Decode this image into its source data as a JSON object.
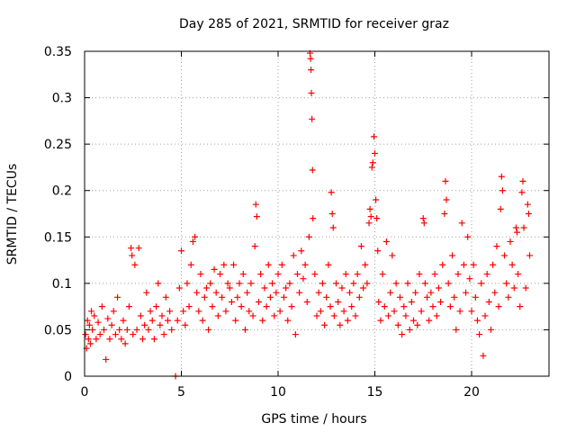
{
  "chart_data": {
    "type": "scatter",
    "title": "Day 285 of 2021, SRMTID for receiver graz",
    "xlabel": "GPS time / hours",
    "ylabel": "SRMTID / TECUs",
    "xlim": [
      0,
      24
    ],
    "ylim": [
      0,
      0.35
    ],
    "xticks": [
      0,
      5,
      10,
      15,
      20
    ],
    "xtick_labels": [
      "0",
      "5",
      "10",
      "15",
      "20"
    ],
    "yticks": [
      0,
      0.05,
      0.1,
      0.15,
      0.2,
      0.25,
      0.3,
      0.35
    ],
    "ytick_labels": [
      "0",
      "0.05",
      "0.1",
      "0.15",
      "0.2",
      "0.25",
      "0.3",
      "0.35"
    ],
    "grid": true,
    "marker": "plus",
    "color": "#ff0000",
    "series": [
      {
        "name": "SRMTID",
        "points": [
          [
            0.05,
            0.045
          ],
          [
            0.1,
            0.03
          ],
          [
            0.15,
            0.06
          ],
          [
            0.2,
            0.04
          ],
          [
            0.25,
            0.055
          ],
          [
            0.3,
            0.035
          ],
          [
            0.35,
            0.07
          ],
          [
            0.4,
            0.05
          ],
          [
            0.5,
            0.065
          ],
          [
            0.6,
            0.04
          ],
          [
            0.7,
            0.058
          ],
          [
            0.8,
            0.045
          ],
          [
            0.9,
            0.075
          ],
          [
            1.0,
            0.05
          ],
          [
            1.1,
            0.018
          ],
          [
            1.2,
            0.062
          ],
          [
            1.3,
            0.04
          ],
          [
            1.4,
            0.055
          ],
          [
            1.5,
            0.07
          ],
          [
            1.6,
            0.045
          ],
          [
            1.7,
            0.085
          ],
          [
            1.8,
            0.05
          ],
          [
            1.9,
            0.04
          ],
          [
            2.0,
            0.06
          ],
          [
            2.1,
            0.035
          ],
          [
            2.2,
            0.05
          ],
          [
            2.3,
            0.075
          ],
          [
            2.4,
            0.138
          ],
          [
            2.45,
            0.13
          ],
          [
            2.5,
            0.045
          ],
          [
            2.6,
            0.12
          ],
          [
            2.7,
            0.05
          ],
          [
            2.8,
            0.138
          ],
          [
            2.9,
            0.065
          ],
          [
            3.0,
            0.04
          ],
          [
            3.1,
            0.055
          ],
          [
            3.2,
            0.09
          ],
          [
            3.3,
            0.05
          ],
          [
            3.4,
            0.07
          ],
          [
            3.5,
            0.06
          ],
          [
            3.6,
            0.04
          ],
          [
            3.7,
            0.075
          ],
          [
            3.8,
            0.1
          ],
          [
            3.9,
            0.055
          ],
          [
            4.0,
            0.065
          ],
          [
            4.1,
            0.045
          ],
          [
            4.2,
            0.085
          ],
          [
            4.3,
            0.06
          ],
          [
            4.4,
            0.07
          ],
          [
            4.5,
            0.05
          ],
          [
            4.7,
            0.0
          ],
          [
            4.8,
            0.06
          ],
          [
            4.9,
            0.095
          ],
          [
            5.0,
            0.135
          ],
          [
            5.1,
            0.07
          ],
          [
            5.2,
            0.055
          ],
          [
            5.3,
            0.1
          ],
          [
            5.4,
            0.075
          ],
          [
            5.5,
            0.12
          ],
          [
            5.6,
            0.145
          ],
          [
            5.7,
            0.15
          ],
          [
            5.8,
            0.09
          ],
          [
            5.9,
            0.07
          ],
          [
            6.0,
            0.11
          ],
          [
            6.1,
            0.06
          ],
          [
            6.2,
            0.085
          ],
          [
            6.3,
            0.095
          ],
          [
            6.4,
            0.05
          ],
          [
            6.5,
            0.1
          ],
          [
            6.6,
            0.075
          ],
          [
            6.7,
            0.115
          ],
          [
            6.8,
            0.09
          ],
          [
            6.9,
            0.065
          ],
          [
            7.0,
            0.11
          ],
          [
            7.1,
            0.085
          ],
          [
            7.2,
            0.12
          ],
          [
            7.3,
            0.07
          ],
          [
            7.4,
            0.1
          ],
          [
            7.5,
            0.095
          ],
          [
            7.6,
            0.08
          ],
          [
            7.7,
            0.12
          ],
          [
            7.8,
            0.06
          ],
          [
            7.9,
            0.085
          ],
          [
            8.0,
            0.1
          ],
          [
            8.1,
            0.075
          ],
          [
            8.2,
            0.11
          ],
          [
            8.3,
            0.05
          ],
          [
            8.4,
            0.09
          ],
          [
            8.5,
            0.07
          ],
          [
            8.6,
            0.1
          ],
          [
            8.7,
            0.065
          ],
          [
            8.8,
            0.14
          ],
          [
            8.85,
            0.185
          ],
          [
            8.9,
            0.172
          ],
          [
            9.0,
            0.08
          ],
          [
            9.1,
            0.11
          ],
          [
            9.2,
            0.06
          ],
          [
            9.3,
            0.095
          ],
          [
            9.4,
            0.075
          ],
          [
            9.5,
            0.12
          ],
          [
            9.6,
            0.085
          ],
          [
            9.7,
            0.1
          ],
          [
            9.8,
            0.065
          ],
          [
            9.9,
            0.09
          ],
          [
            10.0,
            0.11
          ],
          [
            10.1,
            0.07
          ],
          [
            10.2,
            0.12
          ],
          [
            10.3,
            0.085
          ],
          [
            10.4,
            0.095
          ],
          [
            10.5,
            0.06
          ],
          [
            10.6,
            0.1
          ],
          [
            10.7,
            0.075
          ],
          [
            10.8,
            0.13
          ],
          [
            10.9,
            0.045
          ],
          [
            11.0,
            0.11
          ],
          [
            11.1,
            0.09
          ],
          [
            11.2,
            0.135
          ],
          [
            11.3,
            0.105
          ],
          [
            11.4,
            0.12
          ],
          [
            11.5,
            0.08
          ],
          [
            11.6,
            0.15
          ],
          [
            11.65,
            0.348
          ],
          [
            11.68,
            0.342
          ],
          [
            11.7,
            0.33
          ],
          [
            11.72,
            0.305
          ],
          [
            11.75,
            0.277
          ],
          [
            11.78,
            0.222
          ],
          [
            11.8,
            0.17
          ],
          [
            11.9,
            0.11
          ],
          [
            12.0,
            0.065
          ],
          [
            12.1,
            0.09
          ],
          [
            12.2,
            0.07
          ],
          [
            12.3,
            0.1
          ],
          [
            12.4,
            0.055
          ],
          [
            12.5,
            0.085
          ],
          [
            12.6,
            0.12
          ],
          [
            12.7,
            0.075
          ],
          [
            12.75,
            0.198
          ],
          [
            12.8,
            0.175
          ],
          [
            12.85,
            0.16
          ],
          [
            12.9,
            0.065
          ],
          [
            13.0,
            0.1
          ],
          [
            13.1,
            0.08
          ],
          [
            13.2,
            0.055
          ],
          [
            13.3,
            0.095
          ],
          [
            13.4,
            0.07
          ],
          [
            13.5,
            0.11
          ],
          [
            13.6,
            0.06
          ],
          [
            13.7,
            0.09
          ],
          [
            13.8,
            0.075
          ],
          [
            13.9,
            0.1
          ],
          [
            14.0,
            0.065
          ],
          [
            14.1,
            0.11
          ],
          [
            14.2,
            0.085
          ],
          [
            14.3,
            0.14
          ],
          [
            14.4,
            0.095
          ],
          [
            14.5,
            0.12
          ],
          [
            14.6,
            0.1
          ],
          [
            14.7,
            0.165
          ],
          [
            14.75,
            0.18
          ],
          [
            14.8,
            0.172
          ],
          [
            14.85,
            0.225
          ],
          [
            14.9,
            0.23
          ],
          [
            14.95,
            0.258
          ],
          [
            15.0,
            0.24
          ],
          [
            15.05,
            0.19
          ],
          [
            15.1,
            0.17
          ],
          [
            15.15,
            0.135
          ],
          [
            15.2,
            0.08
          ],
          [
            15.3,
            0.06
          ],
          [
            15.4,
            0.11
          ],
          [
            15.5,
            0.075
          ],
          [
            15.6,
            0.145
          ],
          [
            15.7,
            0.065
          ],
          [
            15.8,
            0.09
          ],
          [
            15.9,
            0.13
          ],
          [
            16.0,
            0.07
          ],
          [
            16.1,
            0.1
          ],
          [
            16.2,
            0.055
          ],
          [
            16.3,
            0.085
          ],
          [
            16.4,
            0.045
          ],
          [
            16.5,
            0.075
          ],
          [
            16.6,
            0.065
          ],
          [
            16.7,
            0.1
          ],
          [
            16.8,
            0.05
          ],
          [
            16.9,
            0.08
          ],
          [
            17.0,
            0.06
          ],
          [
            17.1,
            0.09
          ],
          [
            17.2,
            0.055
          ],
          [
            17.3,
            0.11
          ],
          [
            17.4,
            0.07
          ],
          [
            17.5,
            0.17
          ],
          [
            17.55,
            0.165
          ],
          [
            17.6,
            0.1
          ],
          [
            17.7,
            0.085
          ],
          [
            17.8,
            0.06
          ],
          [
            17.9,
            0.09
          ],
          [
            18.0,
            0.075
          ],
          [
            18.1,
            0.11
          ],
          [
            18.2,
            0.065
          ],
          [
            18.3,
            0.095
          ],
          [
            18.4,
            0.08
          ],
          [
            18.5,
            0.12
          ],
          [
            18.6,
            0.175
          ],
          [
            18.65,
            0.21
          ],
          [
            18.7,
            0.19
          ],
          [
            18.8,
            0.1
          ],
          [
            18.9,
            0.075
          ],
          [
            19.0,
            0.13
          ],
          [
            19.1,
            0.085
          ],
          [
            19.2,
            0.05
          ],
          [
            19.3,
            0.11
          ],
          [
            19.4,
            0.07
          ],
          [
            19.5,
            0.165
          ],
          [
            19.6,
            0.12
          ],
          [
            19.7,
            0.09
          ],
          [
            19.8,
            0.15
          ],
          [
            19.9,
            0.105
          ],
          [
            20.0,
            0.07
          ],
          [
            20.1,
            0.12
          ],
          [
            20.2,
            0.085
          ],
          [
            20.3,
            0.06
          ],
          [
            20.4,
            0.045
          ],
          [
            20.5,
            0.1
          ],
          [
            20.6,
            0.022
          ],
          [
            20.7,
            0.065
          ],
          [
            20.8,
            0.11
          ],
          [
            20.9,
            0.08
          ],
          [
            21.0,
            0.05
          ],
          [
            21.1,
            0.12
          ],
          [
            21.2,
            0.09
          ],
          [
            21.3,
            0.14
          ],
          [
            21.4,
            0.075
          ],
          [
            21.5,
            0.18
          ],
          [
            21.55,
            0.215
          ],
          [
            21.6,
            0.2
          ],
          [
            21.7,
            0.13
          ],
          [
            21.8,
            0.1
          ],
          [
            21.9,
            0.085
          ],
          [
            22.0,
            0.145
          ],
          [
            22.1,
            0.12
          ],
          [
            22.2,
            0.095
          ],
          [
            22.3,
            0.16
          ],
          [
            22.35,
            0.155
          ],
          [
            22.4,
            0.11
          ],
          [
            22.5,
            0.075
          ],
          [
            22.6,
            0.198
          ],
          [
            22.65,
            0.21
          ],
          [
            22.7,
            0.16
          ],
          [
            22.8,
            0.095
          ],
          [
            22.9,
            0.185
          ],
          [
            22.95,
            0.175
          ],
          [
            23.0,
            0.13
          ]
        ]
      }
    ]
  }
}
